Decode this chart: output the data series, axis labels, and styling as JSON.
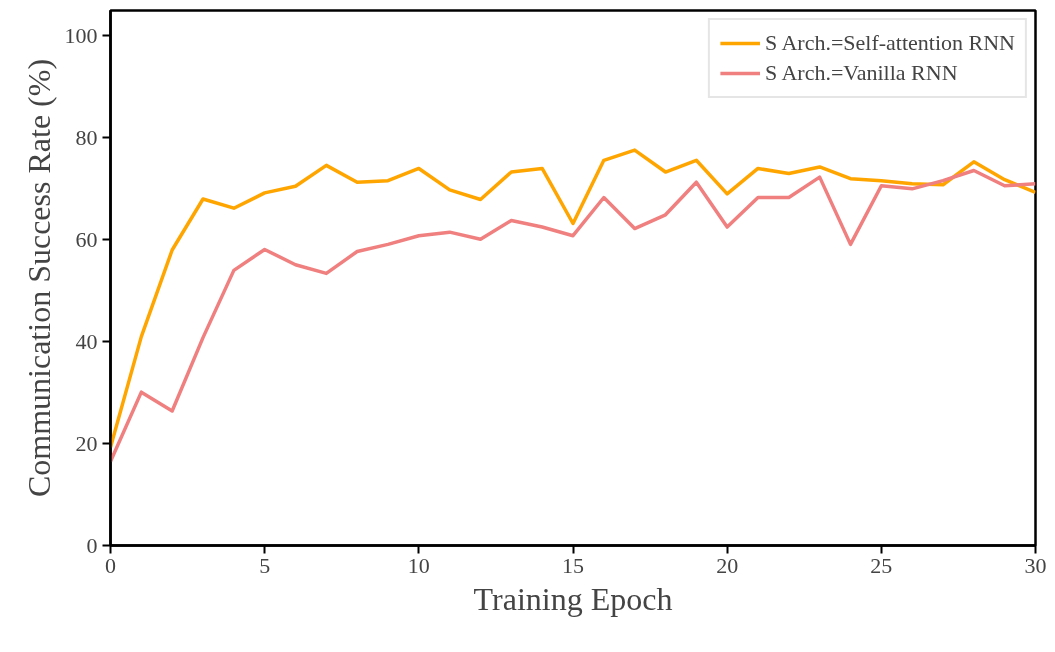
{
  "chart_data": {
    "type": "line",
    "xlabel": "Training Epoch",
    "ylabel": "Communication Success Rate (%)",
    "x": [
      0,
      1,
      2,
      3,
      4,
      5,
      6,
      7,
      8,
      9,
      10,
      11,
      12,
      13,
      14,
      15,
      16,
      17,
      18,
      19,
      20,
      21,
      22,
      23,
      24,
      25,
      26,
      27,
      28,
      29,
      30
    ],
    "series": [
      {
        "name": "S Arch.=Self-attention RNN",
        "color": "#ffa500",
        "values": [
          19.3,
          41,
          58,
          68,
          66.2,
          69.2,
          70.5,
          74.6,
          71.3,
          71.6,
          74,
          69.8,
          67.9,
          73.3,
          74,
          63.2,
          75.6,
          77.6,
          73.3,
          75.6,
          69,
          74,
          73,
          74.3,
          72,
          71.6,
          71,
          70.8,
          75.3,
          71.8,
          69.3
        ]
      },
      {
        "name": "S Arch.=Vanilla RNN",
        "color": "#f08080",
        "values": [
          16.5,
          30.1,
          26.4,
          40.8,
          54,
          58.1,
          55.1,
          53.4,
          57.7,
          59.1,
          60.8,
          61.5,
          60.1,
          63.8,
          62.5,
          60.8,
          68.3,
          62.2,
          64.9,
          71.3,
          62.5,
          68.3,
          68.3,
          72.3,
          59.1,
          70.6,
          70,
          71.6,
          73.6,
          70.6,
          71
        ]
      }
    ],
    "xlim": [
      0,
      30
    ],
    "xticks": [
      0,
      5,
      10,
      15,
      20,
      25,
      30
    ],
    "ylim": [
      0,
      105
    ],
    "yticks": [
      0,
      20,
      40,
      60,
      80,
      100
    ],
    "grid": false,
    "legend": "top right",
    "marker": "none",
    "line_style": "solid"
  }
}
